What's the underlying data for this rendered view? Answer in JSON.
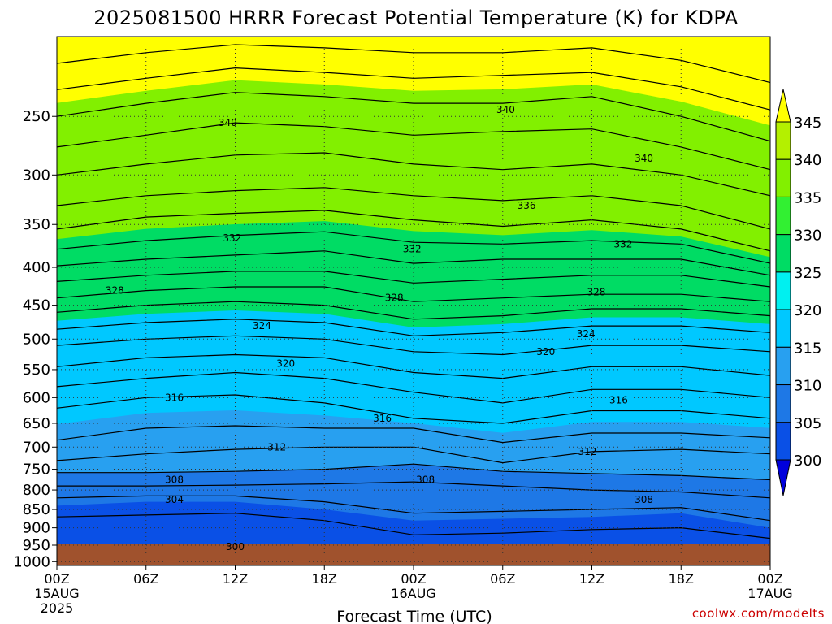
{
  "chart_data": {
    "type": "heatmap",
    "title": "2025081500 HRRR Forecast Potential Temperature (K) for KDPA",
    "xlabel": "Forecast Time (UTC)",
    "ylabel": "",
    "credit": "coolwx.com/modelts",
    "x_range_hours": [
      0,
      48
    ],
    "y_range_hpa": [
      1000,
      200
    ],
    "y_scale": "log-pressure",
    "grid": true,
    "y_ticks": [
      "250",
      "300",
      "350",
      "400",
      "450",
      "500",
      "550",
      "600",
      "650",
      "700",
      "750",
      "800",
      "850",
      "900",
      "950",
      "1000"
    ],
    "x_ticks": [
      {
        "hour": 0,
        "label": "00Z",
        "sub1": "15AUG",
        "sub2": "2025"
      },
      {
        "hour": 6,
        "label": "06Z",
        "sub1": "",
        "sub2": ""
      },
      {
        "hour": 12,
        "label": "12Z",
        "sub1": "",
        "sub2": ""
      },
      {
        "hour": 18,
        "label": "18Z",
        "sub1": "",
        "sub2": ""
      },
      {
        "hour": 24,
        "label": "00Z",
        "sub1": "16AUG",
        "sub2": ""
      },
      {
        "hour": 30,
        "label": "06Z",
        "sub1": "",
        "sub2": ""
      },
      {
        "hour": 36,
        "label": "12Z",
        "sub1": "",
        "sub2": ""
      },
      {
        "hour": 42,
        "label": "18Z",
        "sub1": "",
        "sub2": ""
      },
      {
        "hour": 48,
        "label": "00Z",
        "sub1": "17AUG",
        "sub2": ""
      }
    ],
    "colorbar": {
      "labels": [
        "300",
        "305",
        "310",
        "315",
        "320",
        "325",
        "330",
        "335",
        "340",
        "345"
      ],
      "colors": [
        "#0000dc",
        "#0a50e6",
        "#1e78e6",
        "#28a0f0",
        "#00c8ff",
        "#00f0f0",
        "#00dc64",
        "#32f032",
        "#82f000",
        "#b4f000",
        "#ffff00"
      ]
    },
    "contour_levels": [
      {
        "theta": 300,
        "p": [
          null,
          null,
          null,
          null,
          null,
          null,
          null,
          null,
          null
        ]
      },
      {
        "theta": 302,
        "p": [
          null,
          null,
          null,
          null,
          null,
          null,
          null,
          null,
          null
        ]
      },
      {
        "theta": 304,
        "p": [
          null,
          null,
          null,
          null,
          null,
          null,
          null,
          null,
          null
        ]
      },
      {
        "theta": 306,
        "p": [
          null,
          null,
          null,
          null,
          null,
          null,
          null,
          null,
          null
        ]
      },
      {
        "theta": 308,
        "p": [
          null,
          null,
          null,
          null,
          null,
          null,
          null,
          null,
          null
        ]
      },
      {
        "theta": 310,
        "p": [
          758,
          758,
          755,
          750,
          738,
          755,
          760,
          765,
          775
        ]
      },
      {
        "theta": 312,
        "p": [
          730,
          715,
          705,
          700,
          700,
          735,
          710,
          705,
          715
        ]
      },
      {
        "theta": 314,
        "p": [
          685,
          660,
          655,
          660,
          660,
          690,
          670,
          670,
          680
        ]
      },
      {
        "theta": 316,
        "p": [
          620,
          600,
          595,
          610,
          640,
          650,
          625,
          625,
          640
        ]
      },
      {
        "theta": 318,
        "p": [
          580,
          565,
          555,
          565,
          590,
          610,
          585,
          585,
          600
        ]
      },
      {
        "theta": 320,
        "p": [
          545,
          530,
          525,
          530,
          555,
          565,
          545,
          545,
          560
        ]
      },
      {
        "theta": 322,
        "p": [
          510,
          500,
          495,
          500,
          520,
          525,
          510,
          510,
          520
        ]
      },
      {
        "theta": 324,
        "p": [
          485,
          475,
          470,
          475,
          495,
          490,
          480,
          480,
          490
        ]
      },
      {
        "theta": 326,
        "p": [
          460,
          450,
          445,
          450,
          470,
          465,
          455,
          455,
          465
        ]
      },
      {
        "theta": 328,
        "p": [
          440,
          430,
          425,
          425,
          445,
          440,
          435,
          435,
          445
        ]
      },
      {
        "theta": 330,
        "p": [
          418,
          410,
          405,
          405,
          420,
          415,
          410,
          410,
          425
        ]
      },
      {
        "theta": 332,
        "p": [
          398,
          390,
          385,
          380,
          395,
          390,
          390,
          390,
          410
        ]
      },
      {
        "theta": 334,
        "p": [
          378,
          368,
          362,
          358,
          370,
          372,
          368,
          372,
          395
        ]
      },
      {
        "theta": 336,
        "p": [
          355,
          342,
          338,
          335,
          345,
          352,
          345,
          355,
          380
        ]
      },
      {
        "theta": 338,
        "p": [
          330,
          320,
          315,
          312,
          320,
          325,
          320,
          330,
          355
        ]
      },
      {
        "theta": 340,
        "p": [
          300,
          290,
          282,
          280,
          290,
          295,
          290,
          300,
          320
        ]
      },
      {
        "theta": 342,
        "p": [
          275,
          265,
          255,
          258,
          265,
          262,
          260,
          275,
          295
        ]
      },
      {
        "theta": 344,
        "p": [
          250,
          240,
          232,
          235,
          240,
          240,
          235,
          250,
          270
        ]
      },
      {
        "theta": 346,
        "p": [
          230,
          222,
          215,
          218,
          222,
          220,
          218,
          228,
          245
        ]
      },
      {
        "theta": 348,
        "p": [
          212,
          205,
          200,
          202,
          205,
          205,
          202,
          210,
          225
        ]
      }
    ],
    "contour_labels": [
      "340",
      "340",
      "340",
      "336",
      "332",
      "332",
      "332",
      "328",
      "328",
      "328",
      "324",
      "324",
      "320",
      "320",
      "316",
      "316",
      "316",
      "312",
      "312",
      "308",
      "308",
      "308",
      "304",
      "300"
    ]
  }
}
